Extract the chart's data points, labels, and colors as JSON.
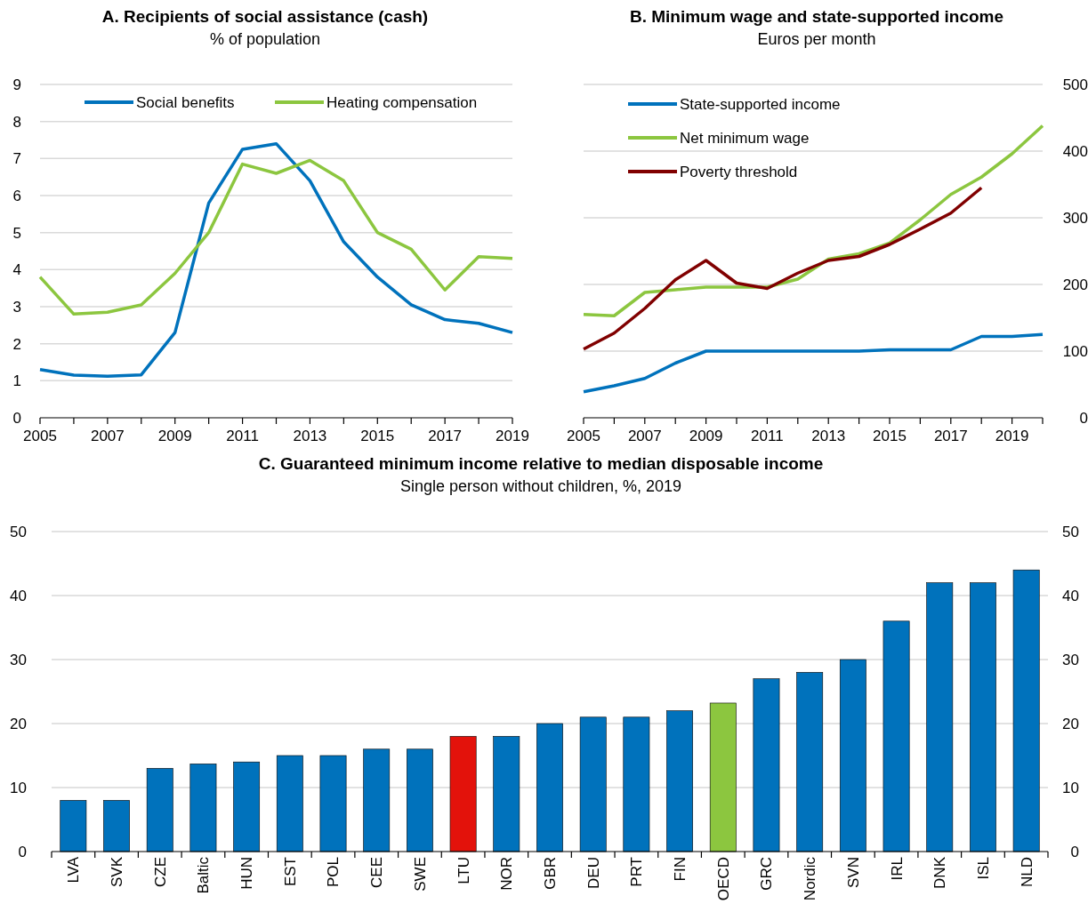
{
  "chart_data": [
    {
      "type": "line",
      "title": "A. Recipients of social assistance (cash)",
      "subtitle": "% of population",
      "x": [
        2005,
        2006,
        2007,
        2008,
        2009,
        2010,
        2011,
        2012,
        2013,
        2014,
        2015,
        2016,
        2017,
        2018,
        2019
      ],
      "xlim": [
        2005,
        2019
      ],
      "xticks": [
        2005,
        2007,
        2009,
        2011,
        2013,
        2015,
        2017,
        2019
      ],
      "ylim": [
        0,
        9
      ],
      "yticks": [
        0,
        1,
        2,
        3,
        4,
        5,
        6,
        7,
        8,
        9
      ],
      "grid": "y",
      "legend": "top",
      "series": [
        {
          "name": "Social benefits",
          "color": "#0072bc",
          "values": [
            1.3,
            1.15,
            1.12,
            1.16,
            2.3,
            5.8,
            7.25,
            7.4,
            6.4,
            4.75,
            3.8,
            3.05,
            2.65,
            2.55,
            2.3
          ]
        },
        {
          "name": "Heating compensation",
          "color": "#8cc63f",
          "values": [
            3.8,
            2.8,
            2.85,
            3.05,
            3.9,
            5.0,
            6.85,
            6.6,
            6.95,
            6.4,
            5.0,
            4.55,
            3.45,
            4.35,
            4.3
          ]
        }
      ]
    },
    {
      "type": "line",
      "title": "B. Minimum wage and state-supported income",
      "subtitle": "Euros per month",
      "x": [
        2005,
        2006,
        2007,
        2008,
        2009,
        2010,
        2011,
        2012,
        2013,
        2014,
        2015,
        2016,
        2017,
        2018,
        2019,
        2020
      ],
      "xlim": [
        2005,
        2020
      ],
      "xticks": [
        2005,
        2007,
        2009,
        2011,
        2013,
        2015,
        2017,
        2019
      ],
      "y2lim": [
        0,
        500
      ],
      "y2ticks": [
        0,
        100,
        200,
        300,
        400,
        500
      ],
      "grid": "y",
      "legend": "top left",
      "series": [
        {
          "name": "State-supported income",
          "color": "#0072bc",
          "axis": "y2",
          "values": [
            39,
            48,
            59,
            82,
            100,
            100,
            100,
            100,
            100,
            100,
            102,
            102,
            102,
            122,
            122,
            125
          ]
        },
        {
          "name": "Net minimum wage",
          "color": "#8cc63f",
          "axis": "y2",
          "values": [
            155,
            153,
            188,
            192,
            196,
            196,
            196,
            208,
            238,
            246,
            262,
            297,
            335,
            361,
            396,
            438
          ]
        },
        {
          "name": "Poverty threshold",
          "color": "#800000",
          "axis": "y2",
          "values": [
            103,
            127,
            164,
            207,
            236,
            202,
            194,
            217,
            236,
            242,
            260,
            283,
            307,
            345,
            null,
            null
          ]
        }
      ]
    },
    {
      "type": "bar",
      "title": "C. Guaranteed minimum income relative to median disposable income",
      "subtitle": "Single person without children, %, 2019",
      "categories": [
        "LVA",
        "SVK",
        "CZE",
        "Baltic",
        "HUN",
        "EST",
        "POL",
        "CEE",
        "SWE",
        "LTU",
        "NOR",
        "GBR",
        "DEU",
        "PRT",
        "FIN",
        "OECD",
        "GRC",
        "Nordic",
        "SVN",
        "IRL",
        "DNK",
        "ISL",
        "NLD"
      ],
      "values": [
        8,
        8,
        13,
        13.7,
        14,
        15,
        15,
        16,
        16,
        18,
        18,
        20,
        21,
        21,
        22,
        23.2,
        27,
        28,
        30,
        36,
        42,
        42,
        44
      ],
      "colors": [
        "#0072bc",
        "#0072bc",
        "#0072bc",
        "#0072bc",
        "#0072bc",
        "#0072bc",
        "#0072bc",
        "#0072bc",
        "#0072bc",
        "#e3120b",
        "#0072bc",
        "#0072bc",
        "#0072bc",
        "#0072bc",
        "#0072bc",
        "#8cc63f",
        "#0072bc",
        "#0072bc",
        "#0072bc",
        "#0072bc",
        "#0072bc",
        "#0072bc",
        "#0072bc"
      ],
      "ylim": [
        0,
        50
      ],
      "yticks": [
        0,
        10,
        20,
        30,
        40,
        50
      ],
      "y2lim": [
        0,
        50
      ],
      "y2ticks": [
        0,
        10,
        20,
        30,
        40,
        50
      ],
      "grid": "y"
    }
  ]
}
